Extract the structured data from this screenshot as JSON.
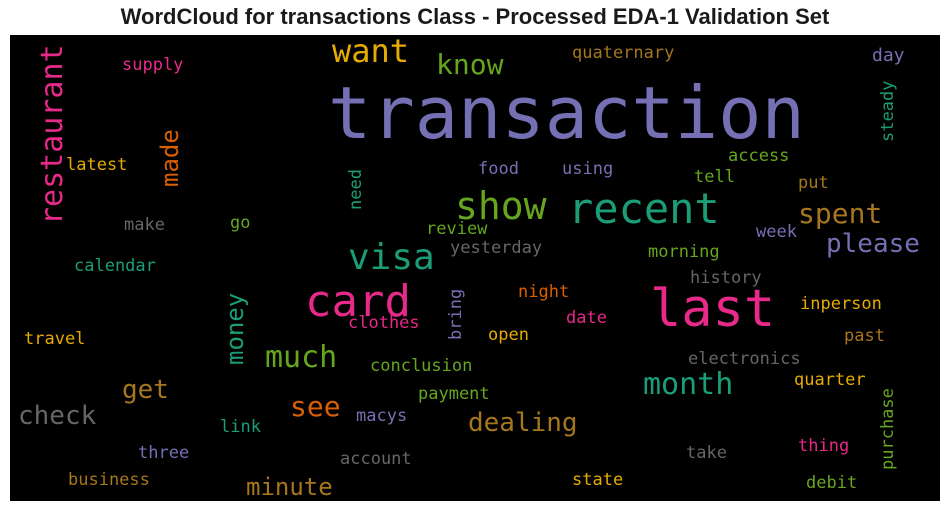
{
  "title": "WordCloud for transactions Class - Processed EDA-1 Validation Set",
  "chart_data": {
    "type": "wordcloud",
    "title": "WordCloud for transactions Class - Processed EDA-1 Validation Set",
    "background": "#000000",
    "words": [
      {
        "text": "transaction",
        "color": "#7570b3"
      },
      {
        "text": "last",
        "color": "#e7298a"
      },
      {
        "text": "card",
        "color": "#e7298a"
      },
      {
        "text": "recent",
        "color": "#1b9e77"
      },
      {
        "text": "show",
        "color": "#66a61e"
      },
      {
        "text": "visa",
        "color": "#1b9e77"
      },
      {
        "text": "restaurant",
        "color": "#e7298a"
      },
      {
        "text": "want",
        "color": "#e6ab02"
      },
      {
        "text": "month",
        "color": "#1b9e77"
      },
      {
        "text": "much",
        "color": "#66a61e"
      },
      {
        "text": "know",
        "color": "#66a61e"
      },
      {
        "text": "spent",
        "color": "#a6761d"
      },
      {
        "text": "please",
        "color": "#7570b3"
      },
      {
        "text": "see",
        "color": "#d95f02"
      },
      {
        "text": "dealing",
        "color": "#a6761d"
      },
      {
        "text": "check",
        "color": "#666666"
      },
      {
        "text": "minute",
        "color": "#a6761d"
      },
      {
        "text": "money",
        "color": "#1b9e77"
      },
      {
        "text": "get",
        "color": "#a6761d"
      },
      {
        "text": "made",
        "color": "#d95f02"
      },
      {
        "text": "supply",
        "color": "#e7298a"
      },
      {
        "text": "quaternary",
        "color": "#a6761d"
      },
      {
        "text": "day",
        "color": "#7570b3"
      },
      {
        "text": "steady",
        "color": "#1b9e77"
      },
      {
        "text": "latest",
        "color": "#e6ab02"
      },
      {
        "text": "need",
        "color": "#1b9e77"
      },
      {
        "text": "food",
        "color": "#7570b3"
      },
      {
        "text": "using",
        "color": "#7570b3"
      },
      {
        "text": "access",
        "color": "#66a61e"
      },
      {
        "text": "tell",
        "color": "#66a61e"
      },
      {
        "text": "put",
        "color": "#a6761d"
      },
      {
        "text": "make",
        "color": "#666666"
      },
      {
        "text": "go",
        "color": "#66a61e"
      },
      {
        "text": "review",
        "color": "#66a61e"
      },
      {
        "text": "yesterday",
        "color": "#666666"
      },
      {
        "text": "morning",
        "color": "#66a61e"
      },
      {
        "text": "week",
        "color": "#7570b3"
      },
      {
        "text": "calendar",
        "color": "#1b9e77"
      },
      {
        "text": "history",
        "color": "#666666"
      },
      {
        "text": "night",
        "color": "#d95f02"
      },
      {
        "text": "bring",
        "color": "#7570b3"
      },
      {
        "text": "inperson",
        "color": "#e6ab02"
      },
      {
        "text": "date",
        "color": "#e7298a"
      },
      {
        "text": "clothes",
        "color": "#e7298a"
      },
      {
        "text": "travel",
        "color": "#e6ab02"
      },
      {
        "text": "open",
        "color": "#e6ab02"
      },
      {
        "text": "past",
        "color": "#a6761d"
      },
      {
        "text": "conclusion",
        "color": "#66a61e"
      },
      {
        "text": "electronics",
        "color": "#666666"
      },
      {
        "text": "quarter",
        "color": "#e6ab02"
      },
      {
        "text": "payment",
        "color": "#66a61e"
      },
      {
        "text": "purchase",
        "color": "#66a61e"
      },
      {
        "text": "macys",
        "color": "#7570b3"
      },
      {
        "text": "link",
        "color": "#1b9e77"
      },
      {
        "text": "thing",
        "color": "#e7298a"
      },
      {
        "text": "three",
        "color": "#7570b3"
      },
      {
        "text": "account",
        "color": "#666666"
      },
      {
        "text": "take",
        "color": "#666666"
      },
      {
        "text": "business",
        "color": "#a6761d"
      },
      {
        "text": "state",
        "color": "#e6ab02"
      },
      {
        "text": "debit",
        "color": "#66a61e"
      }
    ]
  }
}
